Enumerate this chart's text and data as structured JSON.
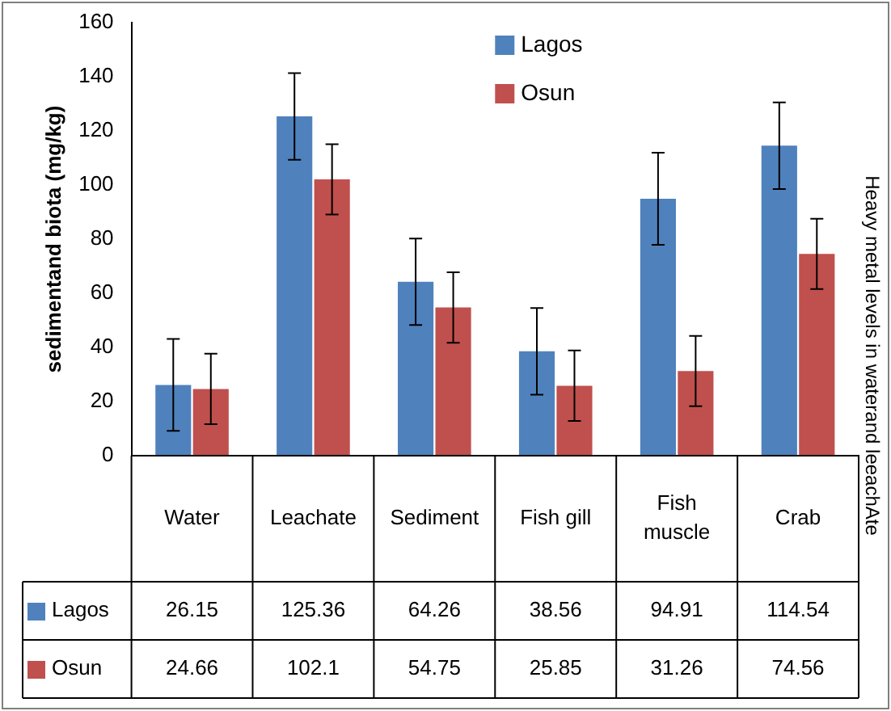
{
  "chart_data": {
    "type": "bar",
    "ylabel": "sedimentand biota (mg/kg)",
    "annotations": [
      "Heavy metal levels in waterand leeachAte"
    ],
    "categories": [
      "Water",
      "Leachate",
      "Sediment",
      "Fish gill",
      "Fish muscle",
      "Crab"
    ],
    "series": [
      {
        "name": "Lagos",
        "color": "#4f81bd",
        "values": [
          26.15,
          125.36,
          64.26,
          38.56,
          94.91,
          114.54
        ],
        "errors": [
          17,
          16,
          16,
          16,
          17,
          16
        ]
      },
      {
        "name": "Osun",
        "color": "#c0504d",
        "values": [
          24.66,
          102.1,
          54.75,
          25.85,
          31.26,
          74.56
        ],
        "errors": [
          13,
          13,
          13,
          13,
          13,
          13
        ]
      }
    ],
    "ylim": [
      0,
      160
    ],
    "yticks": [
      0,
      20,
      40,
      60,
      80,
      100,
      120,
      140,
      160
    ],
    "grid": false,
    "legend": "top",
    "data_labels": true
  }
}
